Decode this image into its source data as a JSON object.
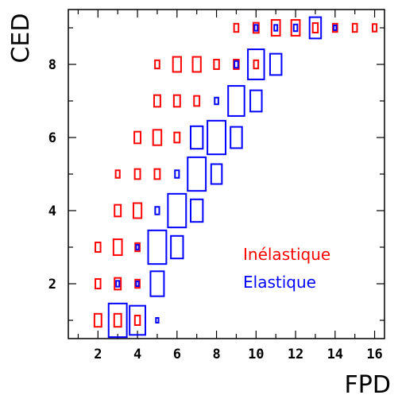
{
  "chart_data": {
    "type": "box",
    "title": "",
    "xlabel": "FPD",
    "ylabel": "CED",
    "xlim": [
      0.5,
      16.5
    ],
    "ylim": [
      0.5,
      9.5
    ],
    "xticks": [
      "2",
      "4",
      "6",
      "8",
      "10",
      "12",
      "14",
      "16"
    ],
    "yticks": [
      "2",
      "4",
      "6",
      "8"
    ],
    "grid": false,
    "legend_position": "center-right",
    "series": [
      {
        "name": "Inélastique",
        "color": "#ff0000",
        "points": [
          {
            "x": 2,
            "y": 1,
            "size": 0.15
          },
          {
            "x": 3,
            "y": 1,
            "size": 0.15
          },
          {
            "x": 4,
            "y": 1,
            "size": 0.08
          },
          {
            "x": 2,
            "y": 2,
            "size": 0.08
          },
          {
            "x": 3,
            "y": 2,
            "size": 0.12
          },
          {
            "x": 4,
            "y": 2,
            "size": 0.06
          },
          {
            "x": 2,
            "y": 3,
            "size": 0.08
          },
          {
            "x": 3,
            "y": 3,
            "size": 0.22
          },
          {
            "x": 4,
            "y": 3,
            "size": 0.06
          },
          {
            "x": 3,
            "y": 4,
            "size": 0.12
          },
          {
            "x": 4,
            "y": 4,
            "size": 0.2
          },
          {
            "x": 3,
            "y": 5,
            "size": 0.05
          },
          {
            "x": 4,
            "y": 5,
            "size": 0.09
          },
          {
            "x": 5,
            "y": 5,
            "size": 0.09
          },
          {
            "x": 4,
            "y": 6,
            "size": 0.12
          },
          {
            "x": 5,
            "y": 6,
            "size": 0.21
          },
          {
            "x": 6,
            "y": 6,
            "size": 0.09
          },
          {
            "x": 5,
            "y": 7,
            "size": 0.12
          },
          {
            "x": 6,
            "y": 7,
            "size": 0.12
          },
          {
            "x": 7,
            "y": 7,
            "size": 0.09
          },
          {
            "x": 5,
            "y": 8,
            "size": 0.06
          },
          {
            "x": 6,
            "y": 8,
            "size": 0.2
          },
          {
            "x": 7,
            "y": 8,
            "size": 0.2
          },
          {
            "x": 8,
            "y": 8,
            "size": 0.08
          },
          {
            "x": 9,
            "y": 8,
            "size": 0.08
          },
          {
            "x": 10,
            "y": 8,
            "size": 0.06
          },
          {
            "x": 9,
            "y": 9,
            "size": 0.06
          },
          {
            "x": 10,
            "y": 9,
            "size": 0.09
          },
          {
            "x": 11,
            "y": 9,
            "size": 0.22
          },
          {
            "x": 12,
            "y": 9,
            "size": 0.22
          },
          {
            "x": 13,
            "y": 9,
            "size": 0.08
          },
          {
            "x": 14,
            "y": 9,
            "size": 0.06
          },
          {
            "x": 15,
            "y": 9,
            "size": 0.06
          },
          {
            "x": 16,
            "y": 9,
            "size": 0.05
          }
        ]
      },
      {
        "name": "Elastique",
        "color": "#0000ff",
        "points": [
          {
            "x": 3,
            "y": 1,
            "size": 1.0
          },
          {
            "x": 4,
            "y": 1,
            "size": 0.75
          },
          {
            "x": 5,
            "y": 1,
            "size": 0.02
          },
          {
            "x": 3,
            "y": 2,
            "size": 0.03
          },
          {
            "x": 4,
            "y": 2,
            "size": 0.02
          },
          {
            "x": 4,
            "y": 3,
            "size": 0.02
          },
          {
            "x": 5,
            "y": 2,
            "size": 0.55
          },
          {
            "x": 6,
            "y": 3,
            "size": 0.45
          },
          {
            "x": 5,
            "y": 3,
            "size": 1.0
          },
          {
            "x": 5,
            "y": 4,
            "size": 0.05
          },
          {
            "x": 6,
            "y": 4,
            "size": 1.0
          },
          {
            "x": 7,
            "y": 4,
            "size": 0.45
          },
          {
            "x": 6,
            "y": 5,
            "size": 0.05
          },
          {
            "x": 7,
            "y": 5,
            "size": 1.0
          },
          {
            "x": 8,
            "y": 5,
            "size": 0.35
          },
          {
            "x": 7,
            "y": 6,
            "size": 0.45
          },
          {
            "x": 8,
            "y": 6,
            "size": 1.0
          },
          {
            "x": 9,
            "y": 6,
            "size": 0.4
          },
          {
            "x": 8,
            "y": 7,
            "size": 0.04
          },
          {
            "x": 9,
            "y": 7,
            "size": 0.8
          },
          {
            "x": 10,
            "y": 7,
            "size": 0.4
          },
          {
            "x": 9,
            "y": 8,
            "size": 0.04
          },
          {
            "x": 10,
            "y": 8,
            "size": 0.8
          },
          {
            "x": 11,
            "y": 8,
            "size": 0.4
          },
          {
            "x": 10,
            "y": 9,
            "size": 0.03
          },
          {
            "x": 11,
            "y": 9,
            "size": 0.03
          },
          {
            "x": 12,
            "y": 9,
            "size": 0.04
          },
          {
            "x": 13,
            "y": 9,
            "size": 0.4
          },
          {
            "x": 14,
            "y": 9,
            "size": 0.02
          }
        ]
      }
    ]
  }
}
